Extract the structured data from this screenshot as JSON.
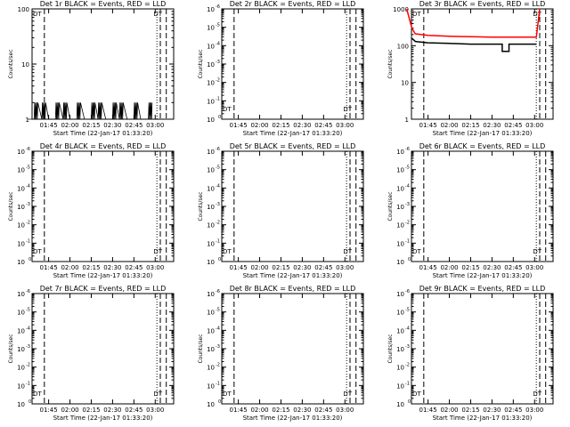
{
  "figure": {
    "x_tick_labels": [
      "01:45",
      "02:00",
      "02:15",
      "02:30",
      "02:45",
      "03:00"
    ],
    "xlabel": "Start Time (22-Jan-17 01:33:20)",
    "ylabel": "Counts/sec",
    "colors": {
      "events": "#000000",
      "lld": "#ff0000",
      "background": "#ffffff"
    }
  },
  "chart_data": [
    {
      "type": "line",
      "title": "Det 1r BLACK = Events, RED = LLD",
      "y_scale": "log",
      "ylim": [
        1,
        100
      ],
      "y_tick_labels": [
        {
          "base": "1",
          "exp": ""
        },
        {
          "base": "10",
          "exp": ""
        },
        {
          "base": "100",
          "exp": ""
        }
      ],
      "x_tick_labels": [
        "01:45",
        "02:00",
        "02:15",
        "02:30",
        "02:45",
        "03:00"
      ],
      "xlabel": "Start Time (22-Jan-17 01:33:20)",
      "ylabel": "Counts/sec",
      "markers": [
        "DT",
        "DT"
      ],
      "series": [
        {
          "name": "Events",
          "color": "#000000",
          "style": "spiky",
          "x": [
            1.5,
            1.58,
            1.67,
            1.75,
            1.83,
            1.92,
            2.0,
            2.08,
            2.17,
            2.25,
            2.33,
            2.42,
            2.5,
            2.58,
            2.67,
            2.75,
            2.83,
            2.92
          ],
          "y": [
            1,
            2,
            2,
            1,
            2,
            2,
            1,
            2,
            1,
            2,
            2,
            1,
            2,
            2,
            1,
            2,
            1,
            2
          ]
        }
      ]
    },
    {
      "type": "line",
      "title": "Det 2r BLACK = Events, RED = LLD",
      "y_scale": "log",
      "ylim": [
        1,
        1e-06
      ],
      "y_tick_labels": [
        {
          "base": "10",
          "exp": "0"
        },
        {
          "base": "10",
          "exp": "-1"
        },
        {
          "base": "10",
          "exp": "-2"
        },
        {
          "base": "10",
          "exp": "-3"
        },
        {
          "base": "10",
          "exp": "-4"
        },
        {
          "base": "10",
          "exp": "-5"
        },
        {
          "base": "10",
          "exp": "-6"
        }
      ],
      "x_tick_labels": [
        "01:45",
        "02:00",
        "02:15",
        "02:30",
        "02:45",
        "03:00"
      ],
      "xlabel": "Start Time (22-Jan-17 01:33:20)",
      "ylabel": "Counts/sec",
      "markers": [
        "DT",
        "DT"
      ],
      "series": []
    },
    {
      "type": "line",
      "title": "Det 3r BLACK = Events, RED = LLD",
      "y_scale": "log",
      "ylim": [
        1,
        1000
      ],
      "y_tick_labels": [
        {
          "base": "1",
          "exp": ""
        },
        {
          "base": "10",
          "exp": ""
        },
        {
          "base": "100",
          "exp": ""
        },
        {
          "base": "1000",
          "exp": ""
        }
      ],
      "x_tick_labels": [
        "01:45",
        "02:00",
        "02:15",
        "02:30",
        "02:45",
        "03:00"
      ],
      "xlabel": "Start Time (22-Jan-17 01:33:20)",
      "ylabel": "Counts/sec",
      "markers": [
        "DT",
        "DT"
      ],
      "series": [
        {
          "name": "LLD",
          "color": "#ff0000",
          "style": "line",
          "x": [
            1.5,
            1.56,
            1.6,
            1.75,
            2.0,
            2.25,
            2.5,
            2.65,
            2.85,
            3.02,
            3.06
          ],
          "y": [
            1000,
            300,
            210,
            190,
            180,
            175,
            170,
            170,
            170,
            170,
            1000
          ]
        },
        {
          "name": "Events",
          "color": "#000000",
          "style": "line",
          "x": [
            1.56,
            1.6,
            1.75,
            2.0,
            2.25,
            2.5,
            2.62,
            2.62,
            2.7,
            2.7,
            2.85,
            3.02
          ],
          "y": [
            160,
            130,
            120,
            115,
            110,
            110,
            110,
            70,
            70,
            110,
            110,
            110
          ]
        }
      ]
    },
    {
      "type": "line",
      "title": "Det 4r BLACK = Events, RED = LLD",
      "y_scale": "log",
      "ylim": [
        1,
        1e-06
      ],
      "y_tick_labels": [
        {
          "base": "10",
          "exp": "0"
        },
        {
          "base": "10",
          "exp": "-1"
        },
        {
          "base": "10",
          "exp": "-2"
        },
        {
          "base": "10",
          "exp": "-3"
        },
        {
          "base": "10",
          "exp": "-4"
        },
        {
          "base": "10",
          "exp": "-5"
        },
        {
          "base": "10",
          "exp": "-6"
        }
      ],
      "x_tick_labels": [
        "01:45",
        "02:00",
        "02:15",
        "02:30",
        "02:45",
        "03:00"
      ],
      "xlabel": "Start Time (22-Jan-17 01:33:20)",
      "ylabel": "Counts/sec",
      "markers": [
        "DT",
        "DT"
      ],
      "series": []
    },
    {
      "type": "line",
      "title": "Det 5r BLACK = Events, RED = LLD",
      "y_scale": "log",
      "ylim": [
        1,
        1e-06
      ],
      "y_tick_labels": [
        {
          "base": "10",
          "exp": "0"
        },
        {
          "base": "10",
          "exp": "-1"
        },
        {
          "base": "10",
          "exp": "-2"
        },
        {
          "base": "10",
          "exp": "-3"
        },
        {
          "base": "10",
          "exp": "-4"
        },
        {
          "base": "10",
          "exp": "-5"
        },
        {
          "base": "10",
          "exp": "-6"
        }
      ],
      "x_tick_labels": [
        "01:45",
        "02:00",
        "02:15",
        "02:30",
        "02:45",
        "03:00"
      ],
      "xlabel": "Start Time (22-Jan-17 01:33:20)",
      "ylabel": "Counts/sec",
      "markers": [
        "DT",
        "DT"
      ],
      "series": []
    },
    {
      "type": "line",
      "title": "Det 6r BLACK = Events, RED = LLD",
      "y_scale": "log",
      "ylim": [
        1,
        1e-06
      ],
      "y_tick_labels": [
        {
          "base": "10",
          "exp": "0"
        },
        {
          "base": "10",
          "exp": "-1"
        },
        {
          "base": "10",
          "exp": "-2"
        },
        {
          "base": "10",
          "exp": "-3"
        },
        {
          "base": "10",
          "exp": "-4"
        },
        {
          "base": "10",
          "exp": "-5"
        },
        {
          "base": "10",
          "exp": "-6"
        }
      ],
      "x_tick_labels": [
        "01:45",
        "02:00",
        "02:15",
        "02:30",
        "02:45",
        "03:00"
      ],
      "xlabel": "Start Time (22-Jan-17 01:33:20)",
      "ylabel": "Counts/sec",
      "markers": [
        "DT",
        "DT"
      ],
      "series": []
    },
    {
      "type": "line",
      "title": "Det 7r BLACK = Events, RED = LLD",
      "y_scale": "log",
      "ylim": [
        1,
        1e-06
      ],
      "y_tick_labels": [
        {
          "base": "10",
          "exp": "0"
        },
        {
          "base": "10",
          "exp": "-1"
        },
        {
          "base": "10",
          "exp": "-2"
        },
        {
          "base": "10",
          "exp": "-3"
        },
        {
          "base": "10",
          "exp": "-4"
        },
        {
          "base": "10",
          "exp": "-5"
        },
        {
          "base": "10",
          "exp": "-6"
        }
      ],
      "x_tick_labels": [
        "01:45",
        "02:00",
        "02:15",
        "02:30",
        "02:45",
        "03:00"
      ],
      "xlabel": "Start Time (22-Jan-17 01:33:20)",
      "ylabel": "Counts/sec",
      "markers": [
        "DT",
        "DT"
      ],
      "series": []
    },
    {
      "type": "line",
      "title": "Det 8r BLACK = Events, RED = LLD",
      "y_scale": "log",
      "ylim": [
        1,
        1e-06
      ],
      "y_tick_labels": [
        {
          "base": "10",
          "exp": "0"
        },
        {
          "base": "10",
          "exp": "-1"
        },
        {
          "base": "10",
          "exp": "-2"
        },
        {
          "base": "10",
          "exp": "-3"
        },
        {
          "base": "10",
          "exp": "-4"
        },
        {
          "base": "10",
          "exp": "-5"
        },
        {
          "base": "10",
          "exp": "-6"
        }
      ],
      "x_tick_labels": [
        "01:45",
        "02:00",
        "02:15",
        "02:30",
        "02:45",
        "03:00"
      ],
      "xlabel": "Start Time (22-Jan-17 01:33:20)",
      "ylabel": "Counts/sec",
      "markers": [
        "DT",
        "DT"
      ],
      "series": []
    },
    {
      "type": "line",
      "title": "Det 9r BLACK = Events, RED = LLD",
      "y_scale": "log",
      "ylim": [
        1,
        1e-06
      ],
      "y_tick_labels": [
        {
          "base": "10",
          "exp": "0"
        },
        {
          "base": "10",
          "exp": "-1"
        },
        {
          "base": "10",
          "exp": "-2"
        },
        {
          "base": "10",
          "exp": "-3"
        },
        {
          "base": "10",
          "exp": "-4"
        },
        {
          "base": "10",
          "exp": "-5"
        },
        {
          "base": "10",
          "exp": "-6"
        }
      ],
      "x_tick_labels": [
        "01:45",
        "02:00",
        "02:15",
        "02:30",
        "02:45",
        "03:00"
      ],
      "xlabel": "Start Time (22-Jan-17 01:33:20)",
      "ylabel": "Counts/sec",
      "markers": [
        "DT",
        "DT"
      ],
      "series": []
    }
  ]
}
